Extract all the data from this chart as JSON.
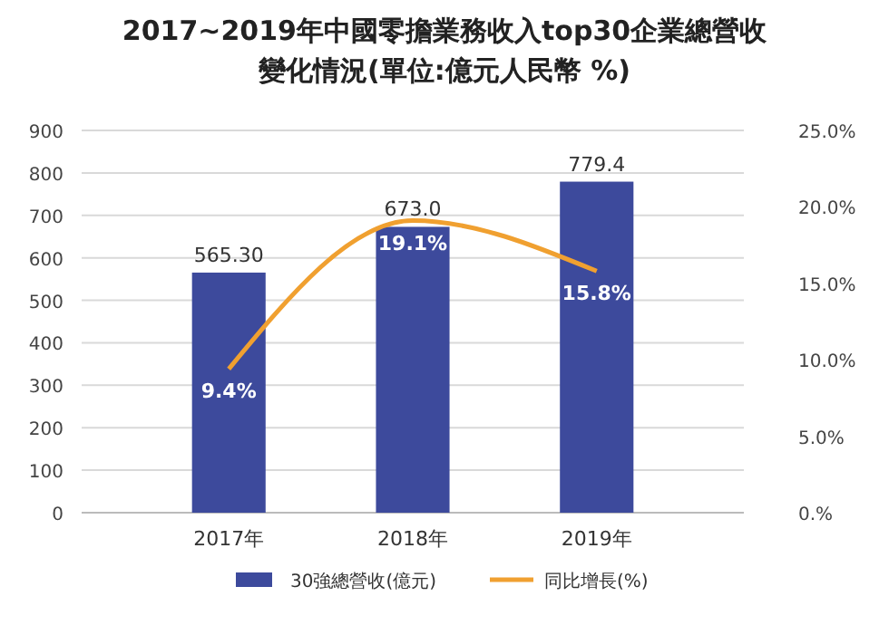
{
  "chart_data": {
    "type": "bar",
    "title": "2017~2019年中國零擔業務收入top30企業總營收變化情況(單位:億元人民幣 %)",
    "categories": [
      "2017年",
      "2018年",
      "2019年"
    ],
    "series": [
      {
        "name": "30強總營收(億元)",
        "color": "#3d4a9c",
        "values": [
          565.3,
          673.0,
          779.4
        ],
        "value_labels": [
          "565.30",
          "673.0",
          "779.4"
        ]
      },
      {
        "name": "同比增長(%)",
        "type": "line",
        "axis": "y2",
        "color": "#f0a030",
        "values": [
          9.4,
          19.1,
          15.8
        ],
        "value_labels": [
          "9.4%",
          "19.1%",
          "15.8%"
        ]
      }
    ],
    "ylim": [
      0,
      900
    ],
    "yticks": [
      0,
      100,
      200,
      300,
      400,
      500,
      600,
      700,
      800,
      900
    ],
    "y2lim": [
      0,
      25
    ],
    "y2ticks": [
      {
        "value": 0,
        "label": "0.%"
      },
      {
        "value": 5,
        "label": "5.0%"
      },
      {
        "value": 10,
        "label": "10.0%"
      },
      {
        "value": 15,
        "label": "15.0%"
      },
      {
        "value": 20,
        "label": "20.0%"
      },
      {
        "value": 25,
        "label": "25.0%"
      }
    ],
    "grid": "y",
    "legend": "bottom",
    "marker": "none",
    "line_style": "solid"
  }
}
